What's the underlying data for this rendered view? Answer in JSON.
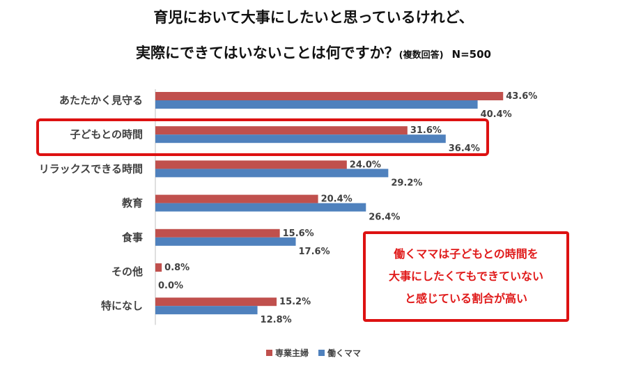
{
  "chart_data": {
    "type": "bar",
    "orientation": "horizontal",
    "title_line1": "育児において大事にしたいと思っているけれど、",
    "title_line2": "実際にできてはいないことは何ですか？",
    "title_note": "(複数回答)",
    "sample_size": "N=500",
    "categories": [
      "あたたかく見守る",
      "子どもとの時間",
      "リラックスできる時間",
      "教育",
      "食事",
      "その他",
      "特になし"
    ],
    "series": [
      {
        "name": "専業主婦",
        "color": "#c0504d",
        "values": [
          43.6,
          31.6,
          24.0,
          20.4,
          15.6,
          0.8,
          15.2
        ],
        "labels": [
          "43.6%",
          "31.6%",
          "24.0%",
          "20.4%",
          "15.6%",
          "0.8%",
          "15.2%"
        ]
      },
      {
        "name": "働くママ",
        "color": "#4f81bd",
        "values": [
          40.4,
          36.4,
          29.2,
          26.4,
          17.6,
          0.0,
          12.8
        ],
        "labels": [
          "40.4%",
          "36.4%",
          "29.2%",
          "26.4%",
          "17.6%",
          "0.0%",
          "12.8%"
        ]
      }
    ],
    "xlim": [
      0,
      50
    ],
    "grid": false,
    "legend_position": "bottom",
    "highlight_category": "子どもとの時間",
    "callout_lines": [
      "働くママは子どもとの時間を",
      "大事にしたくてもできていない",
      "と感じている割合が高い"
    ]
  }
}
